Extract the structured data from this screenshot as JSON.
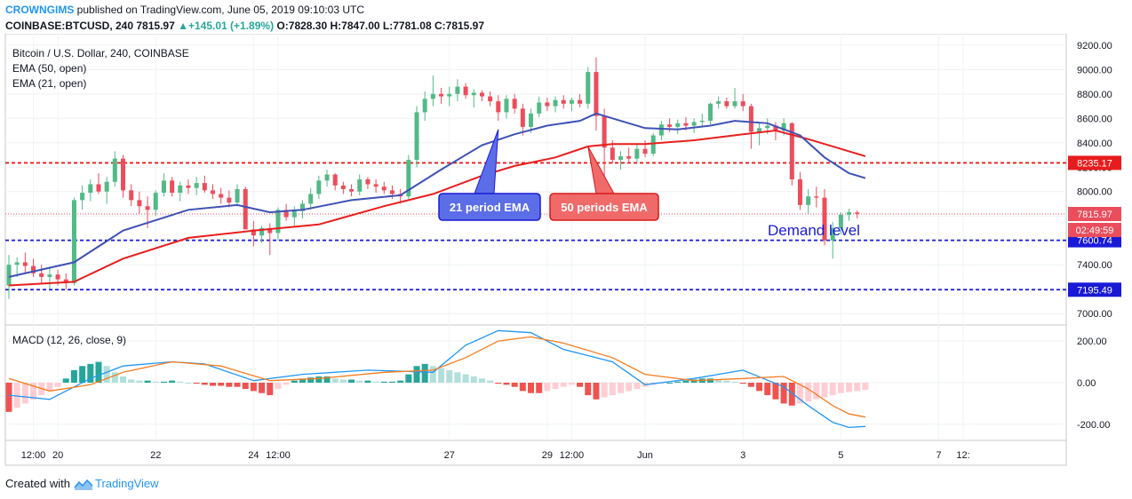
{
  "header": {
    "publisher": "CROWNGIMS",
    "published_text": "published on TradingView.com, June 05, 2019 09:10:03 UTC",
    "symbol": "COINBASE:BTCUSD, 240",
    "last": "7815.97",
    "change": "+145.01 (+1.89%)",
    "o_label": "O:",
    "o": "7828.30",
    "h_label": "H:",
    "h": "7847.00",
    "l_label": "L:",
    "l": "7781.08",
    "c_label": "C:",
    "c": "7815.97"
  },
  "footer": {
    "created_with": "Created with",
    "brand": "TradingView"
  },
  "colors": {
    "up": "#53b987",
    "down": "#eb4d5c",
    "ema21": "#3f51b5",
    "ema50": "#e91e1e",
    "blue_level": "#1a1ad6",
    "red_level": "#e81c1c",
    "macd": "#2196f3",
    "signal": "#f57c1f",
    "hist_up_strong": "#26a69a",
    "hist_up_weak": "#b2dfdb",
    "hist_dn_strong": "#ef5350",
    "hist_dn_weak": "#ffcdd2"
  },
  "chart_data": [
    {
      "type": "candlestick",
      "title": "Bitcoin / U.S. Dollar, 240, COINBASE",
      "legend": [
        "EMA (50, open)",
        "EMA (21, open)"
      ],
      "legend_placement": "top-left",
      "ylim": [
        6950,
        9250
      ],
      "y_ticks": [
        7000,
        7200,
        7400,
        7600,
        7800,
        8000,
        8200,
        8400,
        8600,
        8800,
        9000,
        9200
      ],
      "y_tick_labels": [
        "7000.00",
        "7200.00",
        "7400.00",
        "7600.00",
        "7800.00",
        "8000.00",
        "8200.00",
        "8400.00",
        "8600.00",
        "8800.00",
        "9000.00",
        "9200.00"
      ],
      "x_ticks": [
        {
          "label": "12:00",
          "i": 3
        },
        {
          "label": "20",
          "i": 6
        },
        {
          "label": "22",
          "i": 18
        },
        {
          "label": "24",
          "i": 30
        },
        {
          "label": "12:00",
          "i": 33
        },
        {
          "label": "27",
          "i": 54
        },
        {
          "label": "29",
          "i": 66
        },
        {
          "label": "12:00",
          "i": 69
        },
        {
          "label": "Jun",
          "i": 78
        },
        {
          "label": "3",
          "i": 90
        },
        {
          "label": "5",
          "i": 102
        },
        {
          "label": "7",
          "i": 114
        },
        {
          "label": "12:",
          "i": 117
        }
      ],
      "ohlc": [
        [
          7230,
          7480,
          7120,
          7400
        ],
        [
          7400,
          7460,
          7300,
          7420
        ],
        [
          7420,
          7500,
          7330,
          7390
        ],
        [
          7390,
          7450,
          7300,
          7330
        ],
        [
          7330,
          7400,
          7250,
          7300
        ],
        [
          7300,
          7380,
          7200,
          7320
        ],
        [
          7320,
          7360,
          7230,
          7280
        ],
        [
          7280,
          7330,
          7200,
          7250
        ],
        [
          7250,
          7950,
          7230,
          7930
        ],
        [
          7930,
          8050,
          7850,
          7990
        ],
        [
          7990,
          8100,
          7920,
          8060
        ],
        [
          8060,
          8150,
          7980,
          8000
        ],
        [
          8000,
          8120,
          7900,
          8080
        ],
        [
          8080,
          8330,
          8040,
          8270
        ],
        [
          8270,
          8300,
          7950,
          8010
        ],
        [
          8010,
          8060,
          7880,
          7930
        ],
        [
          7930,
          8000,
          7820,
          7880
        ],
        [
          7880,
          7960,
          7700,
          7850
        ],
        [
          7850,
          8010,
          7800,
          7990
        ],
        [
          7990,
          8150,
          7960,
          8090
        ],
        [
          8090,
          8120,
          7960,
          7990
        ],
        [
          7990,
          8080,
          7920,
          8050
        ],
        [
          8050,
          8100,
          7980,
          8030
        ],
        [
          8030,
          8120,
          7970,
          8070
        ],
        [
          8070,
          8130,
          7990,
          8010
        ],
        [
          8010,
          8060,
          7940,
          7980
        ],
        [
          7980,
          8030,
          7900,
          7950
        ],
        [
          7950,
          8010,
          7870,
          7910
        ],
        [
          7910,
          8060,
          7880,
          8020
        ],
        [
          8020,
          8040,
          7700,
          7690
        ],
        [
          7690,
          7760,
          7550,
          7640
        ],
        [
          7640,
          7720,
          7580,
          7700
        ],
        [
          7700,
          7740,
          7480,
          7660
        ],
        [
          7660,
          7870,
          7600,
          7850
        ],
        [
          7850,
          7900,
          7760,
          7790
        ],
        [
          7790,
          7880,
          7720,
          7840
        ],
        [
          7840,
          7930,
          7780,
          7900
        ],
        [
          7900,
          8030,
          7850,
          7980
        ],
        [
          7980,
          8130,
          7940,
          8090
        ],
        [
          8090,
          8180,
          8040,
          8140
        ],
        [
          8140,
          8150,
          8010,
          8050
        ],
        [
          8050,
          8080,
          7980,
          8020
        ],
        [
          8020,
          8060,
          7960,
          8000
        ],
        [
          8000,
          8140,
          7970,
          8100
        ],
        [
          8100,
          8120,
          8020,
          8060
        ],
        [
          8060,
          8100,
          7990,
          8040
        ],
        [
          8040,
          8080,
          7980,
          8010
        ],
        [
          8010,
          8050,
          7940,
          7980
        ],
        [
          7980,
          8020,
          7900,
          7960
        ],
        [
          7960,
          8300,
          7940,
          8260
        ],
        [
          8260,
          8700,
          8200,
          8650
        ],
        [
          8650,
          8820,
          8580,
          8760
        ],
        [
          8760,
          8950,
          8700,
          8800
        ],
        [
          8800,
          8850,
          8720,
          8780
        ],
        [
          8780,
          8860,
          8700,
          8800
        ],
        [
          8800,
          8920,
          8740,
          8860
        ],
        [
          8860,
          8890,
          8760,
          8790
        ],
        [
          8790,
          8840,
          8690,
          8810
        ],
        [
          8810,
          8830,
          8740,
          8780
        ],
        [
          8780,
          8820,
          8700,
          8740
        ],
        [
          8740,
          8790,
          8580,
          8650
        ],
        [
          8650,
          8790,
          8600,
          8760
        ],
        [
          8760,
          8800,
          8640,
          8680
        ],
        [
          8680,
          8720,
          8460,
          8530
        ],
        [
          8530,
          8680,
          8480,
          8640
        ],
        [
          8640,
          8780,
          8610,
          8730
        ],
        [
          8730,
          8770,
          8660,
          8700
        ],
        [
          8700,
          8780,
          8650,
          8750
        ],
        [
          8750,
          8790,
          8680,
          8720
        ],
        [
          8720,
          8770,
          8660,
          8750
        ],
        [
          8750,
          8800,
          8690,
          8720
        ],
        [
          8720,
          9020,
          8680,
          8980
        ],
        [
          8980,
          9100,
          8500,
          8620
        ],
        [
          8620,
          8680,
          7950,
          8360
        ],
        [
          8360,
          8420,
          8230,
          8260
        ],
        [
          8260,
          8330,
          8180,
          8290
        ],
        [
          8290,
          8360,
          8230,
          8270
        ],
        [
          8270,
          8390,
          8240,
          8350
        ],
        [
          8350,
          8420,
          8280,
          8310
        ],
        [
          8310,
          8480,
          8290,
          8460
        ],
        [
          8460,
          8580,
          8420,
          8550
        ],
        [
          8550,
          8600,
          8490,
          8530
        ],
        [
          8530,
          8590,
          8470,
          8560
        ],
        [
          8560,
          8610,
          8500,
          8540
        ],
        [
          8540,
          8600,
          8480,
          8570
        ],
        [
          8570,
          8640,
          8530,
          8580
        ],
        [
          8580,
          8730,
          8550,
          8720
        ],
        [
          8720,
          8780,
          8680,
          8740
        ],
        [
          8740,
          8770,
          8680,
          8700
        ],
        [
          8700,
          8850,
          8680,
          8740
        ],
        [
          8740,
          8800,
          8660,
          8700
        ],
        [
          8700,
          8720,
          8350,
          8490
        ],
        [
          8490,
          8560,
          8380,
          8520
        ],
        [
          8520,
          8600,
          8470,
          8540
        ],
        [
          8540,
          8570,
          8420,
          8500
        ],
        [
          8500,
          8600,
          8460,
          8560
        ],
        [
          8560,
          8570,
          8050,
          8100
        ],
        [
          8100,
          8160,
          7850,
          7890
        ],
        [
          7890,
          8020,
          7820,
          7960
        ],
        [
          7960,
          8040,
          7870,
          7950
        ],
        [
          7950,
          8020,
          7560,
          7600
        ],
        [
          7600,
          7750,
          7450,
          7700
        ],
        [
          7700,
          7830,
          7650,
          7810
        ],
        [
          7810,
          7860,
          7760,
          7830
        ],
        [
          7828.3,
          7847.0,
          7781.08,
          7815.97
        ]
      ],
      "ema21": [
        [
          0,
          7300
        ],
        [
          8,
          7420
        ],
        [
          14,
          7680
        ],
        [
          22,
          7850
        ],
        [
          28,
          7890
        ],
        [
          32,
          7830
        ],
        [
          36,
          7850
        ],
        [
          42,
          7930
        ],
        [
          48,
          7970
        ],
        [
          53,
          8180
        ],
        [
          58,
          8380
        ],
        [
          62,
          8470
        ],
        [
          66,
          8540
        ],
        [
          70,
          8580
        ],
        [
          72,
          8640
        ],
        [
          74,
          8600
        ],
        [
          78,
          8520
        ],
        [
          82,
          8510
        ],
        [
          86,
          8540
        ],
        [
          89,
          8580
        ],
        [
          93,
          8560
        ],
        [
          97,
          8460
        ],
        [
          100,
          8280
        ],
        [
          103,
          8150
        ],
        [
          105,
          8110
        ]
      ],
      "ema50": [
        [
          0,
          7230
        ],
        [
          8,
          7260
        ],
        [
          14,
          7450
        ],
        [
          22,
          7620
        ],
        [
          30,
          7680
        ],
        [
          38,
          7730
        ],
        [
          46,
          7880
        ],
        [
          52,
          7980
        ],
        [
          58,
          8130
        ],
        [
          62,
          8210
        ],
        [
          67,
          8280
        ],
        [
          71,
          8370
        ],
        [
          74,
          8390
        ],
        [
          78,
          8390
        ],
        [
          84,
          8420
        ],
        [
          90,
          8470
        ],
        [
          94,
          8500
        ],
        [
          98,
          8430
        ],
        [
          102,
          8350
        ],
        [
          105,
          8290
        ]
      ],
      "levels": [
        {
          "value": 8235.17,
          "label": "8235.17",
          "style": "red"
        },
        {
          "value": 7600.74,
          "label": "7600.74",
          "style": "blue"
        },
        {
          "value": 7195.49,
          "label": "7195.49",
          "style": "blue"
        },
        {
          "value": 7815.97,
          "label": "7815.97",
          "style": "last"
        }
      ],
      "countdown": "02:49:59",
      "annotations": [
        {
          "text": "21 period EMA",
          "target_i": 60,
          "target_v": 8510
        },
        {
          "text": "50 periods EMA",
          "target_i": 71,
          "target_v": 8370
        },
        {
          "text": "Demand level"
        }
      ]
    },
    {
      "type": "line",
      "title": "MACD (12, 26, close, 9)",
      "ylim": [
        -260,
        260
      ],
      "y_ticks": [
        -200,
        0,
        200
      ],
      "y_tick_labels": [
        "-200.00",
        "0.00",
        "200.00"
      ],
      "series": [
        {
          "role": "macd",
          "values": [
            [
              0,
              -60
            ],
            [
              5,
              -80
            ],
            [
              10,
              20
            ],
            [
              14,
              80
            ],
            [
              20,
              100
            ],
            [
              24,
              90
            ],
            [
              30,
              10
            ],
            [
              36,
              40
            ],
            [
              44,
              60
            ],
            [
              52,
              50
            ],
            [
              56,
              180
            ],
            [
              60,
              250
            ],
            [
              64,
              240
            ],
            [
              68,
              160
            ],
            [
              74,
              100
            ],
            [
              78,
              -10
            ],
            [
              84,
              20
            ],
            [
              90,
              60
            ],
            [
              95,
              -20
            ],
            [
              98,
              -110
            ],
            [
              101,
              -190
            ],
            [
              103,
              -215
            ],
            [
              105,
              -210
            ]
          ]
        },
        {
          "role": "signal",
          "values": [
            [
              0,
              20
            ],
            [
              5,
              -40
            ],
            [
              10,
              -10
            ],
            [
              14,
              50
            ],
            [
              20,
              100
            ],
            [
              26,
              80
            ],
            [
              32,
              10
            ],
            [
              38,
              20
            ],
            [
              46,
              50
            ],
            [
              52,
              60
            ],
            [
              56,
              120
            ],
            [
              60,
              200
            ],
            [
              64,
              220
            ],
            [
              68,
              190
            ],
            [
              74,
              120
            ],
            [
              78,
              40
            ],
            [
              84,
              10
            ],
            [
              90,
              20
            ],
            [
              95,
              30
            ],
            [
              98,
              -30
            ],
            [
              101,
              -110
            ],
            [
              103,
              -150
            ],
            [
              105,
              -165
            ]
          ]
        }
      ],
      "histogram": [
        -140,
        -120,
        -100,
        -80,
        -60,
        -40,
        -20,
        20,
        60,
        80,
        90,
        100,
        80,
        50,
        30,
        15,
        10,
        10,
        5,
        5,
        10,
        5,
        0,
        -5,
        -10,
        -15,
        -15,
        -20,
        -20,
        -30,
        -40,
        -50,
        -60,
        -30,
        -10,
        10,
        20,
        25,
        30,
        30,
        20,
        15,
        15,
        10,
        10,
        5,
        5,
        5,
        10,
        40,
        80,
        90,
        80,
        70,
        60,
        50,
        40,
        30,
        20,
        10,
        -5,
        -10,
        -20,
        -40,
        -50,
        -50,
        -40,
        -30,
        -20,
        -10,
        -20,
        -60,
        -80,
        -70,
        -60,
        -50,
        -40,
        -30,
        -20,
        -10,
        -5,
        0,
        5,
        10,
        15,
        20,
        20,
        15,
        10,
        5,
        -5,
        -20,
        -40,
        -60,
        -80,
        -100,
        -110,
        -100,
        -90,
        -80,
        -70,
        -60,
        -50,
        -45,
        -40,
        -35
      ]
    }
  ]
}
